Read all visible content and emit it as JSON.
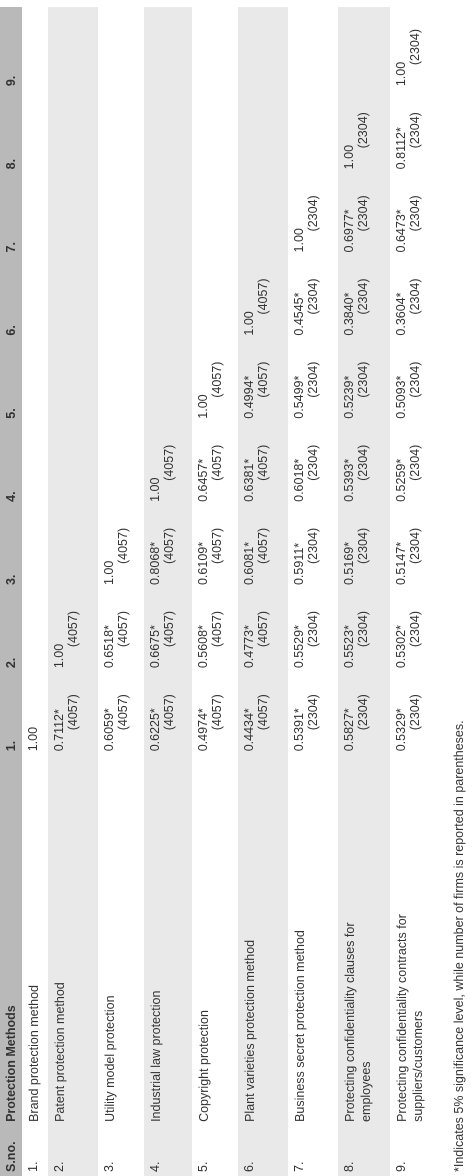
{
  "table": {
    "header": [
      "S.no.",
      "Protection Methods",
      "1.",
      "2.",
      "3.",
      "4.",
      "5.",
      "6.",
      "7.",
      "8.",
      "9."
    ],
    "rows": [
      {
        "sno": "1.",
        "method": "Brand protection method",
        "cells": [
          {
            "r": "1.00"
          }
        ]
      },
      {
        "sno": "2.",
        "method": "Patent protection method",
        "cells": [
          {
            "r": "0.7112*",
            "n": "(4057)"
          },
          {
            "r": "1.00",
            "n": "(4057)"
          }
        ]
      },
      {
        "sno": "3.",
        "method": "Utility model protection",
        "cells": [
          {
            "r": "0.6059*",
            "n": "(4057)"
          },
          {
            "r": "0.6518*",
            "n": "(4057)"
          },
          {
            "r": "1.00",
            "n": "(4057)"
          }
        ]
      },
      {
        "sno": "4.",
        "method": "Industrial law protection",
        "cells": [
          {
            "r": "0.6225*",
            "n": "(4057)"
          },
          {
            "r": "0.6675*",
            "n": "(4057)"
          },
          {
            "r": "0.8068*",
            "n": "(4057)"
          },
          {
            "r": "1.00",
            "n": "(4057)"
          }
        ]
      },
      {
        "sno": "5.",
        "method": "Copyright protection",
        "cells": [
          {
            "r": "0.4974*",
            "n": "(4057)"
          },
          {
            "r": "0.5608*",
            "n": "(4057)"
          },
          {
            "r": "0.6109*",
            "n": "(4057)"
          },
          {
            "r": "0.6457*",
            "n": "(4057)"
          },
          {
            "r": "1.00",
            "n": "(4057)"
          }
        ]
      },
      {
        "sno": "6.",
        "method": "Plant varieties protection method",
        "cells": [
          {
            "r": "0.4434*",
            "n": "(4057)"
          },
          {
            "r": "0.4773*",
            "n": "(4057)"
          },
          {
            "r": "0.6081*",
            "n": "(4057)"
          },
          {
            "r": "0.6381*",
            "n": "(4057)"
          },
          {
            "r": "0.4994*",
            "n": "(4057)"
          },
          {
            "r": "1.00",
            "n": "(4057)"
          }
        ]
      },
      {
        "sno": "7.",
        "method": "Business secret protection method",
        "cells": [
          {
            "r": "0.5391*",
            "n": "(2304)"
          },
          {
            "r": "0.5529*",
            "n": "(2304)"
          },
          {
            "r": "0.5911*",
            "n": "(2304)"
          },
          {
            "r": "0.6018*",
            "n": "(2304)"
          },
          {
            "r": "0.5499*",
            "n": "(2304)"
          },
          {
            "r": "0.4545*",
            "n": "(2304)"
          },
          {
            "r": "1.00",
            "n": "(2304)"
          }
        ]
      },
      {
        "sno": "8.",
        "method": "Protecting confidentiality clauses for employees",
        "cells": [
          {
            "r": "0.5827*",
            "n": "(2304)"
          },
          {
            "r": "0.5523*",
            "n": "(2304)"
          },
          {
            "r": "0.5169*",
            "n": "(2304)"
          },
          {
            "r": "0.5393*",
            "n": "(2304)"
          },
          {
            "r": "0.5239*",
            "n": "(2304)"
          },
          {
            "r": "0.3840*",
            "n": "(2304)"
          },
          {
            "r": "0.6977*",
            "n": "(2304)"
          },
          {
            "r": "1.00",
            "n": "(2304)"
          }
        ]
      },
      {
        "sno": "9.",
        "method": "Protecting confidentiality contracts for suppliers/customers",
        "cells": [
          {
            "r": "0.5329*",
            "n": "(2304)"
          },
          {
            "r": "0.5302*",
            "n": "(2304)"
          },
          {
            "r": "0.5147*",
            "n": "(2304)"
          },
          {
            "r": "0.5259*",
            "n": "(2304)"
          },
          {
            "r": "0.5093*",
            "n": "(2304)"
          },
          {
            "r": "0.3604*",
            "n": "(2304)"
          },
          {
            "r": "0.6473*",
            "n": "(2304)"
          },
          {
            "r": "0.8112*",
            "n": "(2304)"
          },
          {
            "r": "1.00",
            "n": "(2304)"
          }
        ]
      }
    ]
  },
  "footnote": "*Indicates 5% significance level, while number of firms is reported in parentheses."
}
